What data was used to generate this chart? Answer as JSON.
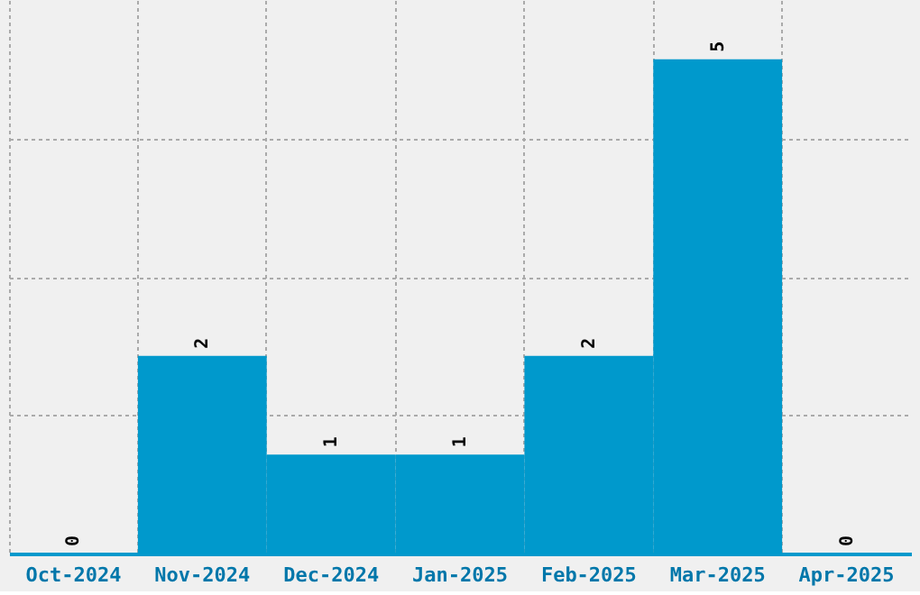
{
  "chart_data": {
    "type": "bar",
    "categories": [
      "Oct-2024",
      "Nov-2024",
      "Dec-2024",
      "Jan-2025",
      "Feb-2025",
      "Mar-2025",
      "Apr-2025"
    ],
    "values": [
      0,
      2,
      1,
      1,
      2,
      5,
      0
    ],
    "color": "#0099cc",
    "data_labels": true,
    "ylim": [
      0,
      5.6
    ],
    "yticks": [
      {
        "value": 1.4,
        "label": null
      },
      {
        "value": 2.8,
        "label": null
      },
      {
        "value": 4.2,
        "label": null
      }
    ],
    "tick_labels": "x",
    "grid": true
  }
}
